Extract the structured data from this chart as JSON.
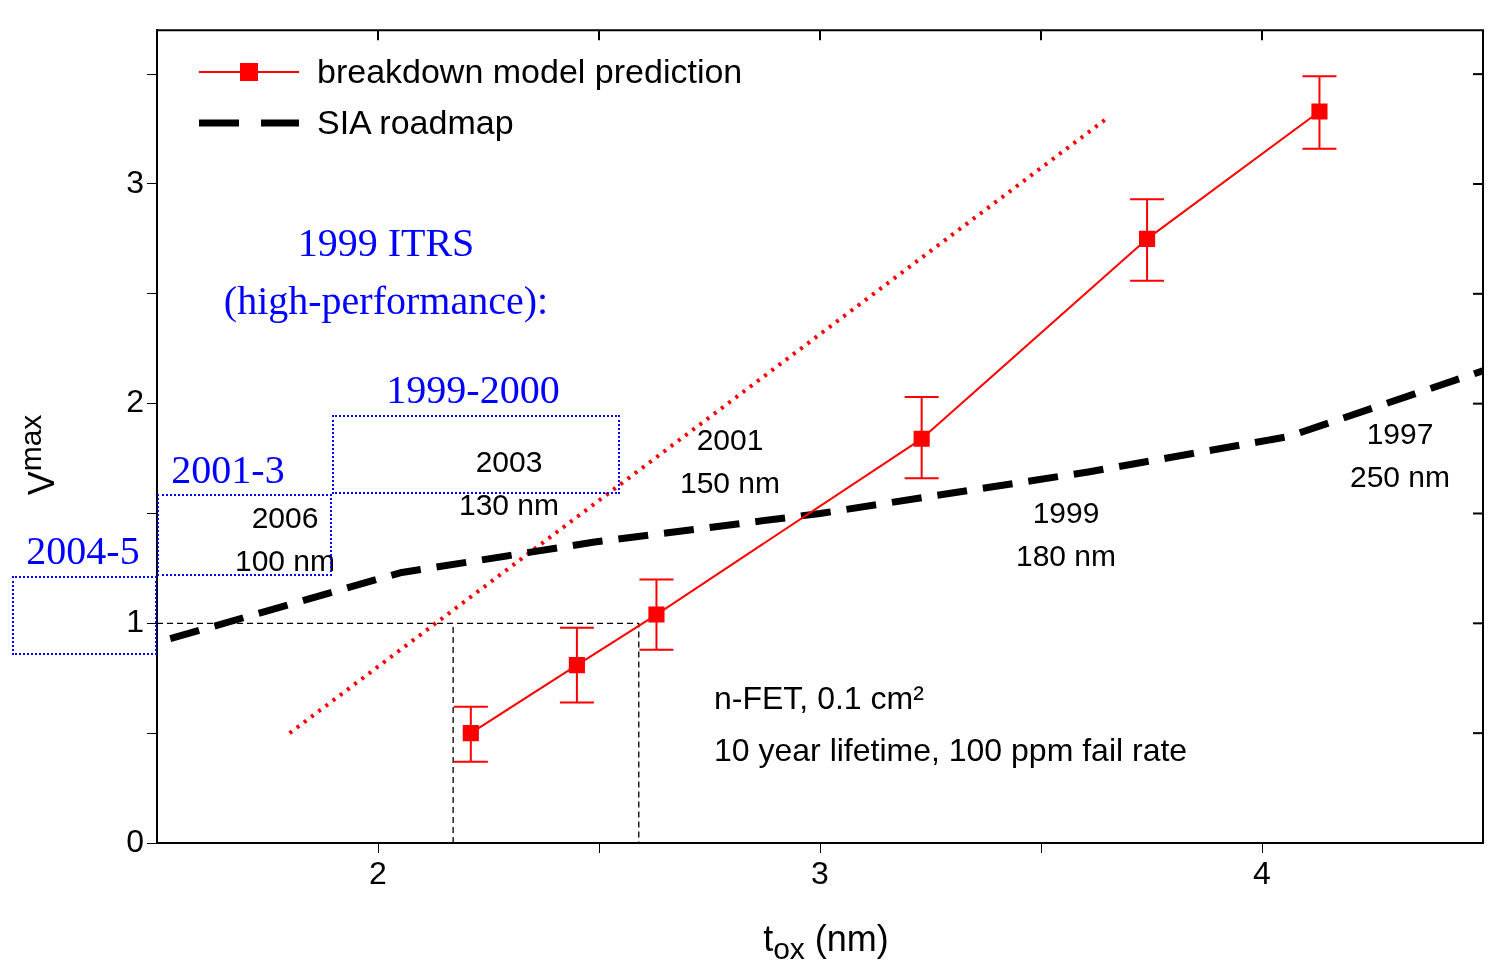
{
  "chart_data": {
    "type": "line",
    "xlabel": "t$_{ox}$ (nm)",
    "ylabel": "V$^{max}$",
    "xlim": [
      1.5,
      4.5
    ],
    "xticks": [
      2,
      {
        "value": 2.5,
        "label": null
      },
      3,
      {
        "value": 3.5,
        "label": null
      },
      4
    ],
    "ylim": [
      0,
      3.7
    ],
    "yticks": [
      0,
      {
        "value": 0.5,
        "label": null
      },
      1,
      {
        "value": 1.5,
        "label": null
      },
      2,
      {
        "value": 2.5,
        "label": null
      },
      3,
      {
        "value": 3.5,
        "label": null
      }
    ],
    "grid": false,
    "legend": "top left",
    "series": [
      {
        "name": "breakdown model prediction",
        "color": "#ff0000",
        "x": [
          2.21,
          2.45,
          2.63,
          3.23,
          3.74,
          4.13
        ],
        "values": [
          0.5,
          0.81,
          1.04,
          1.84,
          2.75,
          3.33
        ],
        "errors": [
          [
            0.37,
            0.62
          ],
          [
            0.64,
            0.98
          ],
          [
            0.88,
            1.2
          ],
          [
            1.66,
            2.03
          ],
          [
            2.56,
            2.93
          ],
          [
            3.16,
            3.49
          ]
        ],
        "marker": "square",
        "line_style": "solid"
      },
      {
        "name": "SIA roadmap",
        "color": "#000000",
        "x": [
          1.53,
          2.05,
          2.49,
          3.0,
          3.61,
          4.06,
          4.5
        ],
        "values": [
          0.93,
          1.23,
          1.37,
          1.5,
          1.69,
          1.85,
          2.15
        ],
        "marker": "none",
        "line_style": "dashed"
      },
      {
        "color": "#ff0000",
        "x": [
          1.8,
          3.65
        ],
        "values": [
          0.5,
          3.3
        ],
        "marker": "none",
        "line_style": "dotted"
      },
      {
        "color": "#000000",
        "x": [
          1.5,
          2.59,
          2.59
        ],
        "values": [
          1,
          1,
          0
        ],
        "marker": "none",
        "line_style": "dashed"
      },
      {
        "color": "#000000",
        "x": [
          2.17,
          2.17
        ],
        "values": [
          0,
          1
        ],
        "marker": "none",
        "line_style": "dashed"
      }
    ],
    "annotations": [
      "1999 ITRS\n(high-performance):",
      "1999-2000",
      "2001-3",
      "2004-5",
      "2006\n100 nm",
      "2003\n130 nm",
      "2001\n150 nm",
      "1999\n180 nm",
      "1997\n250 nm",
      "n-FET, 0.1 cm²\n10 year lifetime, 100 ppm fail rate"
    ]
  }
}
